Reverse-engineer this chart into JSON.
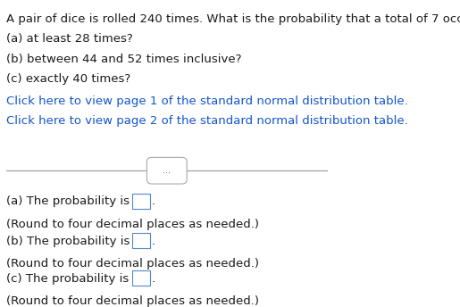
{
  "bg_color": "#ffffff",
  "text_color": "#1a1a1a",
  "link_color": "#1155CC",
  "question_line1": "A pair of dice is rolled 240 times. What is the probability that a total of 7 occurs",
  "question_line2": "(a) at least 28 times?",
  "question_line3": "(b) between 44 and 52 times inclusive?",
  "question_line4": "(c) exactly 40 times?",
  "link1": "Click here to view page 1 of the standard normal distribution table.",
  "link2": "Click here to view page 2 of the standard normal distribution table.",
  "divider_dots": "...",
  "answer_a_label": "(a) The probability is",
  "answer_a_round": "(Round to four decimal places as needed.)",
  "answer_b_label": "(b) The probability is",
  "answer_b_round": "(Round to four decimal places as needed.)",
  "answer_c_label": "(c) The probability is",
  "answer_c_round": "(Round to four decimal places as needed.)",
  "font_size_question": 9.5,
  "font_size_answer": 9.5
}
